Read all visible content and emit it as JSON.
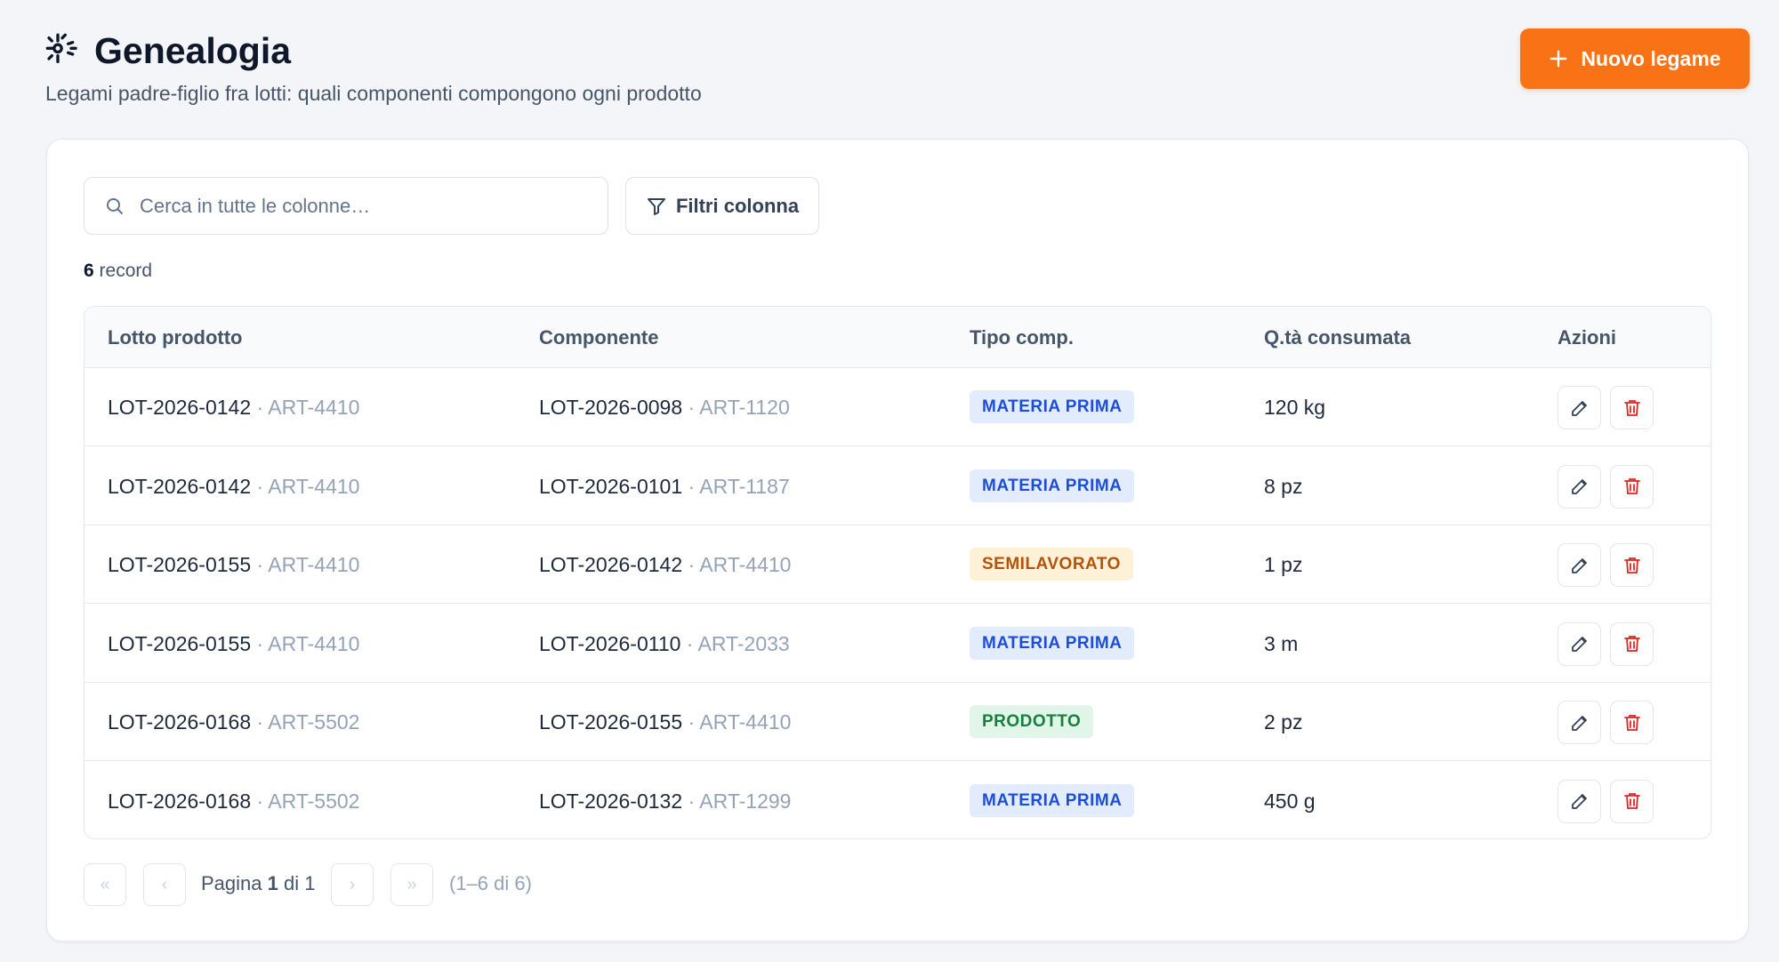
{
  "header": {
    "title": "Genealogia",
    "subtitle": "Legami padre-figlio fra lotti: quali componenti compongono ogni prodotto",
    "button": "Nuovo legame"
  },
  "toolbar": {
    "search_placeholder": "Cerca in tutte le colonne…",
    "filter_button": "Filtri colonna"
  },
  "count": {
    "value": "6",
    "label": "record"
  },
  "table": {
    "columns": [
      "Lotto prodotto",
      "Componente",
      "Tipo comp.",
      "Q.tà consumata",
      "Azioni"
    ],
    "rows": [
      {
        "lotto": "LOT-2026-0142",
        "lotto_art": "ART-4410",
        "componente": "LOT-2026-0098",
        "componente_art": "ART-1120",
        "tipo": "MATERIA PRIMA",
        "tipo_color": "#1d4ed8",
        "tipo_bg": "#e3ecfd",
        "qty": "120 kg"
      },
      {
        "lotto": "LOT-2026-0142",
        "lotto_art": "ART-4410",
        "componente": "LOT-2026-0101",
        "componente_art": "ART-1187",
        "tipo": "MATERIA PRIMA",
        "tipo_color": "#1d4ed8",
        "tipo_bg": "#e3ecfd",
        "qty": "8 pz"
      },
      {
        "lotto": "LOT-2026-0155",
        "lotto_art": "ART-4410",
        "componente": "LOT-2026-0142",
        "componente_art": "ART-4410",
        "tipo": "SEMILAVORATO",
        "tipo_color": "#b45309",
        "tipo_bg": "#fdf1d8",
        "qty": "1 pz"
      },
      {
        "lotto": "LOT-2026-0155",
        "lotto_art": "ART-4410",
        "componente": "LOT-2026-0110",
        "componente_art": "ART-2033",
        "tipo": "MATERIA PRIMA",
        "tipo_color": "#1d4ed8",
        "tipo_bg": "#e3ecfd",
        "qty": "3 m"
      },
      {
        "lotto": "LOT-2026-0168",
        "lotto_art": "ART-5502",
        "componente": "LOT-2026-0155",
        "componente_art": "ART-4410",
        "tipo": "PRODOTTO",
        "tipo_color": "#15803d",
        "tipo_bg": "#e1f6e8",
        "qty": "2 pz"
      },
      {
        "lotto": "LOT-2026-0168",
        "lotto_art": "ART-5502",
        "componente": "LOT-2026-0132",
        "componente_art": "ART-1299",
        "tipo": "MATERIA PRIMA",
        "tipo_color": "#1d4ed8",
        "tipo_bg": "#e3ecfd",
        "qty": "450 g"
      }
    ]
  },
  "pagination": {
    "first": "«",
    "prev": "‹",
    "next": "›",
    "last": "»",
    "page_label": "Pagina",
    "page": "1",
    "of": "di 1",
    "range": "(1–6 di 6)"
  }
}
